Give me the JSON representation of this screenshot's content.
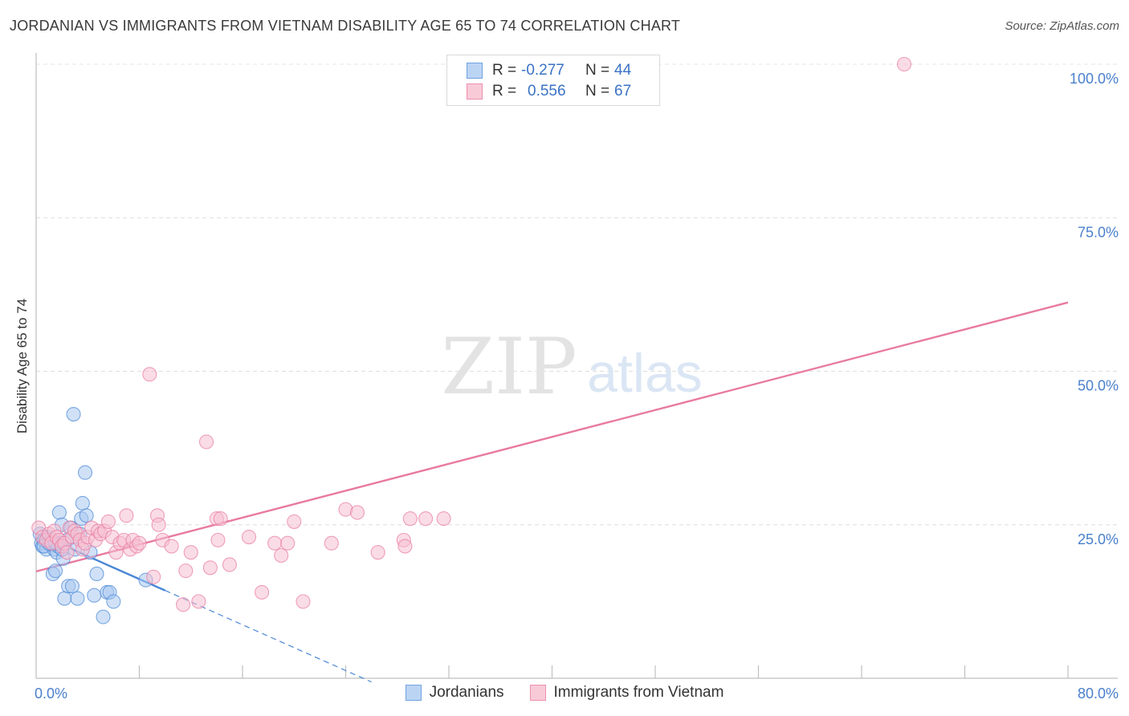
{
  "title": "JORDANIAN VS IMMIGRANTS FROM VIETNAM DISABILITY AGE 65 TO 74 CORRELATION CHART",
  "source": "Source: ZipAtlas.com",
  "watermark": {
    "zip": "ZIP",
    "atlas": "atlas"
  },
  "legend": {
    "rows": [
      {
        "r_label": "R =",
        "r_value": "-0.277",
        "n_label": "N =",
        "n_value": "44",
        "color": "#6fa3e0",
        "fill": "#bcd4f4"
      },
      {
        "r_label": "R =",
        "r_value": "0.556",
        "n_label": "N =",
        "n_value": "67",
        "color": "#ee8fad",
        "fill": "#f8cad8"
      }
    ]
  },
  "bottom_legend": [
    {
      "label": "Jordanians",
      "color": "#6fa3e0",
      "fill": "#bcd4f4"
    },
    {
      "label": "Immigrants from Vietnam",
      "color": "#ee8fad",
      "fill": "#f8cad8"
    }
  ],
  "chart_data": {
    "type": "scatter",
    "title": "JORDANIAN VS IMMIGRANTS FROM VIETNAM DISABILITY AGE 65 TO 74 CORRELATION CHART",
    "xlabel": "",
    "ylabel": "Disability Age 65 to 74",
    "xlim": [
      0,
      80
    ],
    "ylim": [
      0,
      100
    ],
    "x_tick_labels": [
      {
        "value": 0,
        "label": "0.0%"
      },
      {
        "value": 80,
        "label": "80.0%"
      }
    ],
    "y_tick_labels": [
      {
        "value": 25,
        "label": "25.0%"
      },
      {
        "value": 50,
        "label": "50.0%"
      },
      {
        "value": 75,
        "label": "75.0%"
      },
      {
        "value": 100,
        "label": "100.0%"
      }
    ],
    "grid": true,
    "series": [
      {
        "name": "Jordanians",
        "color": "#4a87d6",
        "fill": "#a9c8f0",
        "points": [
          [
            0.3,
            23.5
          ],
          [
            0.4,
            22.0
          ],
          [
            0.5,
            21.5
          ],
          [
            0.6,
            22.5
          ],
          [
            0.7,
            22.8
          ],
          [
            0.8,
            21.0
          ],
          [
            0.9,
            23.0
          ],
          [
            1.0,
            22.3
          ],
          [
            1.1,
            21.8
          ],
          [
            1.2,
            22.6
          ],
          [
            1.3,
            17.0
          ],
          [
            1.4,
            21.0
          ],
          [
            1.5,
            17.5
          ],
          [
            1.6,
            20.5
          ],
          [
            1.7,
            21.5
          ],
          [
            1.8,
            27.0
          ],
          [
            1.9,
            22.0
          ],
          [
            2.0,
            25.0
          ],
          [
            2.1,
            19.5
          ],
          [
            2.2,
            13.0
          ],
          [
            2.4,
            22.5
          ],
          [
            2.5,
            15.0
          ],
          [
            2.7,
            24.5
          ],
          [
            2.8,
            15.0
          ],
          [
            2.9,
            43.0
          ],
          [
            3.0,
            21.0
          ],
          [
            3.2,
            13.0
          ],
          [
            3.4,
            23.5
          ],
          [
            3.5,
            26.0
          ],
          [
            3.6,
            28.5
          ],
          [
            3.8,
            33.5
          ],
          [
            3.9,
            26.5
          ],
          [
            4.2,
            20.5
          ],
          [
            4.5,
            13.5
          ],
          [
            4.7,
            17.0
          ],
          [
            5.2,
            10.0
          ],
          [
            5.5,
            14.0
          ],
          [
            5.7,
            14.0
          ],
          [
            6.0,
            12.5
          ],
          [
            8.5,
            16.0
          ],
          [
            0.6,
            21.5
          ],
          [
            1.0,
            22.0
          ],
          [
            1.5,
            22.0
          ],
          [
            2.0,
            21.0
          ]
        ],
        "trendline": {
          "x": [
            0,
            10
          ],
          "y": [
            23.6,
            14.3
          ]
        },
        "trendline_extension": {
          "x": [
            10,
            26
          ],
          "y": [
            14.3,
            -0.6
          ]
        }
      },
      {
        "name": "Immigrants from Vietnam",
        "color": "#e87aa0",
        "fill": "#f6bfd1",
        "points": [
          [
            0.2,
            24.5
          ],
          [
            0.5,
            23.0
          ],
          [
            0.8,
            22.5
          ],
          [
            1.0,
            23.5
          ],
          [
            1.2,
            22.0
          ],
          [
            1.4,
            24.0
          ],
          [
            1.6,
            23.0
          ],
          [
            1.8,
            22.5
          ],
          [
            2.0,
            21.5
          ],
          [
            2.2,
            22.0
          ],
          [
            2.4,
            20.5
          ],
          [
            2.6,
            24.5
          ],
          [
            2.8,
            23.0
          ],
          [
            3.0,
            24.0
          ],
          [
            3.2,
            23.5
          ],
          [
            3.4,
            22.5
          ],
          [
            3.6,
            21.0
          ],
          [
            3.8,
            22.0
          ],
          [
            4.0,
            23.0
          ],
          [
            4.3,
            24.5
          ],
          [
            4.6,
            22.5
          ],
          [
            4.8,
            24.0
          ],
          [
            5.0,
            23.5
          ],
          [
            5.3,
            24.0
          ],
          [
            5.6,
            25.5
          ],
          [
            5.9,
            23.0
          ],
          [
            6.2,
            20.5
          ],
          [
            6.5,
            22.0
          ],
          [
            6.8,
            22.5
          ],
          [
            7.0,
            26.5
          ],
          [
            7.3,
            21.0
          ],
          [
            7.5,
            22.5
          ],
          [
            7.8,
            21.5
          ],
          [
            8.0,
            22.0
          ],
          [
            8.8,
            49.5
          ],
          [
            9.1,
            16.5
          ],
          [
            9.4,
            26.5
          ],
          [
            9.5,
            25.0
          ],
          [
            9.8,
            22.5
          ],
          [
            10.5,
            21.5
          ],
          [
            11.4,
            12.0
          ],
          [
            11.6,
            17.5
          ],
          [
            12.0,
            20.5
          ],
          [
            12.6,
            12.5
          ],
          [
            13.2,
            38.5
          ],
          [
            13.5,
            18.0
          ],
          [
            14.0,
            26.0
          ],
          [
            14.1,
            22.5
          ],
          [
            14.3,
            26.0
          ],
          [
            15.0,
            18.5
          ],
          [
            16.5,
            23.0
          ],
          [
            17.5,
            14.0
          ],
          [
            18.5,
            22.0
          ],
          [
            19.0,
            20.0
          ],
          [
            19.5,
            22.0
          ],
          [
            20.0,
            25.5
          ],
          [
            20.7,
            12.5
          ],
          [
            22.9,
            22.0
          ],
          [
            24.0,
            27.5
          ],
          [
            24.9,
            27.0
          ],
          [
            26.5,
            20.5
          ],
          [
            28.5,
            22.5
          ],
          [
            28.6,
            21.5
          ],
          [
            29.0,
            26.0
          ],
          [
            30.2,
            26.0
          ],
          [
            31.6,
            26.0
          ],
          [
            67.3,
            100.0
          ]
        ],
        "trendline": {
          "x": [
            0,
            80
          ],
          "y": [
            17.4,
            61.2
          ]
        }
      }
    ]
  }
}
